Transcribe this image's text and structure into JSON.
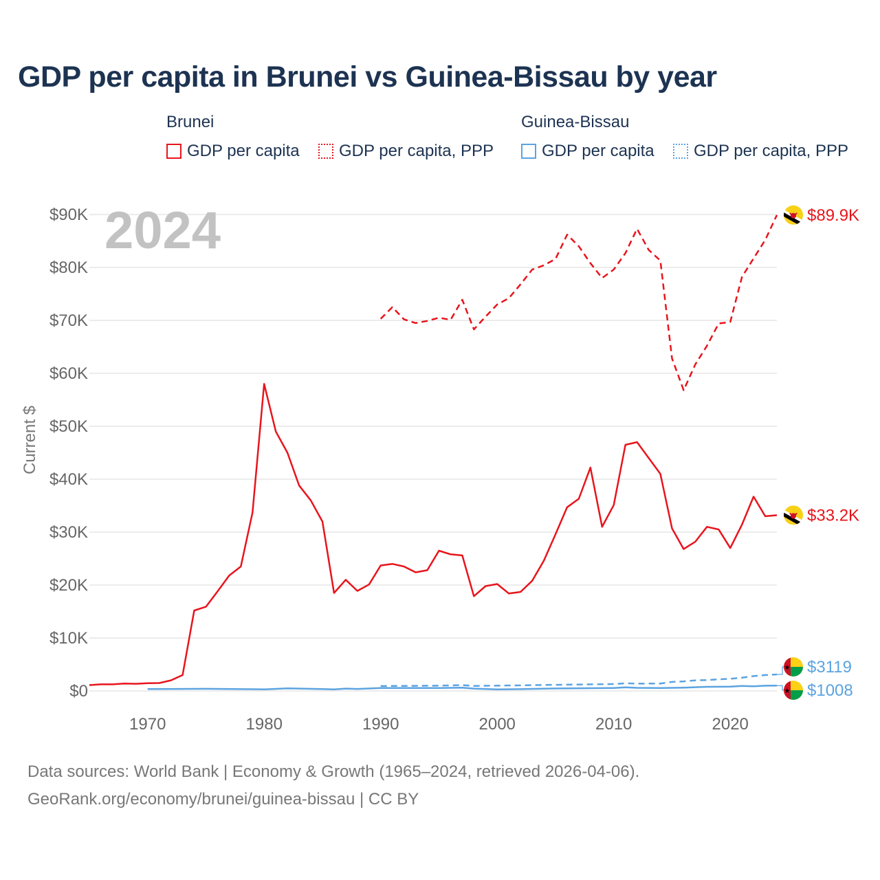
{
  "title": "GDP per capita in Brunei vs Guinea-Bissau by year",
  "year_label": "2024",
  "legend": {
    "groups": [
      {
        "name": "Brunei",
        "color": "#e8141c",
        "items": [
          "GDP per capita",
          "GDP per capita, PPP"
        ]
      },
      {
        "name": "Guinea-Bissau",
        "color": "#5ba3e0",
        "items": [
          "GDP per capita",
          "GDP per capita, PPP"
        ]
      }
    ]
  },
  "source": {
    "line1": "Data sources: World Bank | Economy & Growth (1965–2024, retrieved 2026-04-06).",
    "line2": "GeoRank.org/economy/brunei/guinea-bissau | CC BY"
  },
  "chart_data": {
    "type": "line",
    "title": "GDP per capita in Brunei vs Guinea-Bissau by year",
    "xlabel": "",
    "ylabel": "Current $",
    "xlim": [
      1965,
      2024
    ],
    "ylim": [
      0,
      90000
    ],
    "grid": true,
    "x_ticks": [
      1970,
      1980,
      1990,
      2000,
      2010,
      2020
    ],
    "y_ticks": [
      0,
      10000,
      20000,
      30000,
      40000,
      50000,
      60000,
      70000,
      80000,
      90000
    ],
    "y_tick_labels": [
      "$0",
      "$10K",
      "$20K",
      "$30K",
      "$40K",
      "$50K",
      "$60K",
      "$70K",
      "$80K",
      "$90K"
    ],
    "series": [
      {
        "name": "Brunei GDP per capita",
        "color": "#e8141c",
        "dash": "solid",
        "end_label": "$33.2K",
        "x": [
          1965,
          1966,
          1967,
          1968,
          1969,
          1970,
          1971,
          1972,
          1973,
          1974,
          1975,
          1976,
          1977,
          1978,
          1979,
          1980,
          1981,
          1982,
          1983,
          1984,
          1985,
          1986,
          1987,
          1988,
          1989,
          1990,
          1991,
          1992,
          1993,
          1994,
          1995,
          1996,
          1997,
          1998,
          1999,
          2000,
          2001,
          2002,
          2003,
          2004,
          2005,
          2006,
          2007,
          2008,
          2009,
          2010,
          2011,
          2012,
          2013,
          2014,
          2015,
          2016,
          2017,
          2018,
          2019,
          2020,
          2021,
          2022,
          2023,
          2024
        ],
        "values": [
          1100,
          1250,
          1250,
          1400,
          1350,
          1450,
          1500,
          2000,
          3000,
          15200,
          15900,
          18800,
          21800,
          23500,
          33700,
          58000,
          49000,
          45000,
          38800,
          36000,
          32000,
          18500,
          21000,
          18900,
          20100,
          23700,
          24000,
          23500,
          22400,
          22800,
          26500,
          25800,
          25600,
          17900,
          19800,
          20200,
          18400,
          18700,
          20800,
          24600,
          29600,
          34700,
          36300,
          42200,
          31000,
          35100,
          46500,
          47000,
          44000,
          41000,
          30700,
          26800,
          28200,
          31000,
          30500,
          27000,
          31400,
          36700,
          33000,
          33200
        ]
      },
      {
        "name": "Brunei GDP per capita, PPP",
        "color": "#e8141c",
        "dash": "dashed",
        "end_label": "$89.9K",
        "x": [
          1990,
          1991,
          1992,
          1993,
          1994,
          1995,
          1996,
          1997,
          1998,
          1999,
          2000,
          2001,
          2002,
          2003,
          2004,
          2005,
          2006,
          2007,
          2008,
          2009,
          2010,
          2011,
          2012,
          2013,
          2014,
          2015,
          2016,
          2017,
          2018,
          2019,
          2020,
          2021,
          2022,
          2023,
          2024
        ],
        "values": [
          70300,
          72500,
          70200,
          69500,
          69900,
          70500,
          70100,
          73900,
          68300,
          70700,
          73000,
          74200,
          76800,
          79600,
          80400,
          81600,
          86200,
          84000,
          80800,
          78000,
          79600,
          82700,
          87300,
          83300,
          81300,
          62800,
          56800,
          61700,
          65200,
          69400,
          69700,
          78200,
          81700,
          85200,
          89900
        ]
      },
      {
        "name": "Guinea-Bissau GDP per capita",
        "color": "#5ba3e0",
        "dash": "solid",
        "end_label": "$1008",
        "x": [
          1970,
          1975,
          1980,
          1982,
          1985,
          1986,
          1987,
          1988,
          1990,
          1995,
          1997,
          1998,
          2000,
          2002,
          2005,
          2008,
          2010,
          2011,
          2012,
          2014,
          2016,
          2018,
          2020,
          2021,
          2022,
          2023,
          2024
        ],
        "values": [
          350,
          400,
          300,
          480,
          360,
          300,
          440,
          380,
          550,
          560,
          620,
          440,
          280,
          340,
          470,
          520,
          560,
          690,
          580,
          560,
          620,
          780,
          810,
          930,
          880,
          990,
          1008
        ]
      },
      {
        "name": "Guinea-Bissau GDP per capita, PPP",
        "color": "#5ba3e0",
        "dash": "dashed",
        "end_label": "$3119",
        "x": [
          1990,
          1995,
          1997,
          1998,
          2000,
          2005,
          2010,
          2011,
          2012,
          2014,
          2015,
          2016,
          2017,
          2018,
          2019,
          2020,
          2021,
          2022,
          2023,
          2024
        ],
        "values": [
          920,
          1000,
          1100,
          950,
          1000,
          1150,
          1300,
          1450,
          1380,
          1400,
          1700,
          1800,
          2000,
          2050,
          2200,
          2300,
          2500,
          2800,
          3000,
          3119
        ]
      }
    ]
  }
}
